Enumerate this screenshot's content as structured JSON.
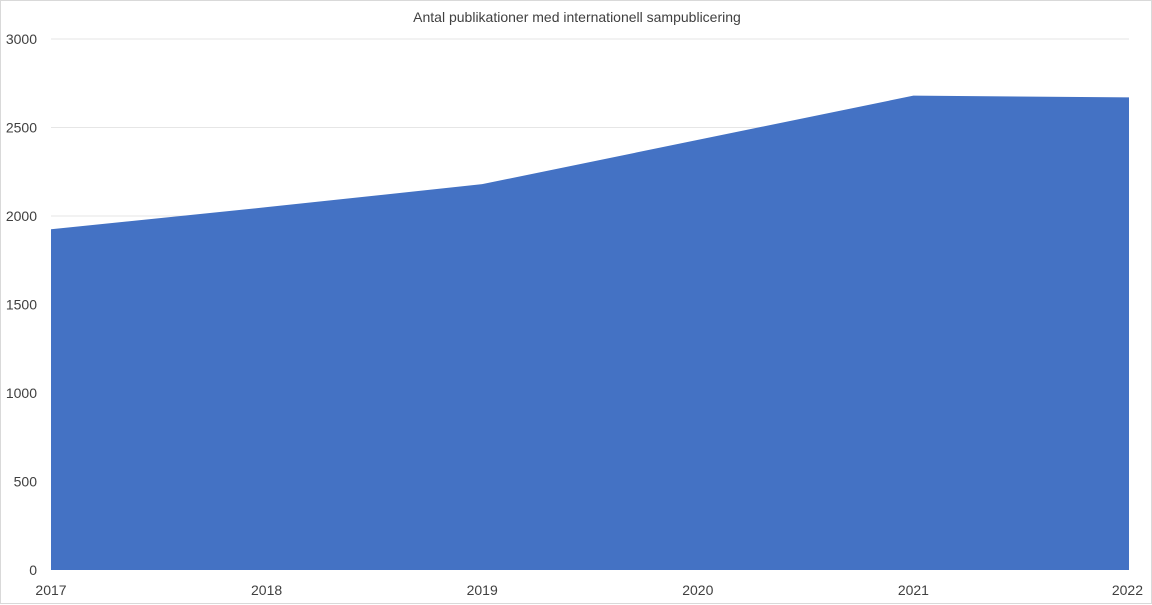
{
  "chart_data": {
    "type": "area",
    "title": "Antal publikationer med internationell sampublicering",
    "xlabel": "",
    "ylabel": "",
    "categories": [
      "2017",
      "2018",
      "2019",
      "2020",
      "2021",
      "2022"
    ],
    "series": [
      {
        "values": [
          1925,
          2050,
          2180,
          2430,
          2680,
          2670
        ]
      }
    ],
    "ylim": [
      0,
      3000
    ],
    "yticks": [
      "0",
      "500",
      "1000",
      "1500",
      "2000",
      "2500",
      "3000"
    ],
    "grid": true,
    "legend": "none",
    "colors": {
      "area": "#4472C4",
      "grid": "#e6e6e6",
      "text": "#404040"
    }
  }
}
